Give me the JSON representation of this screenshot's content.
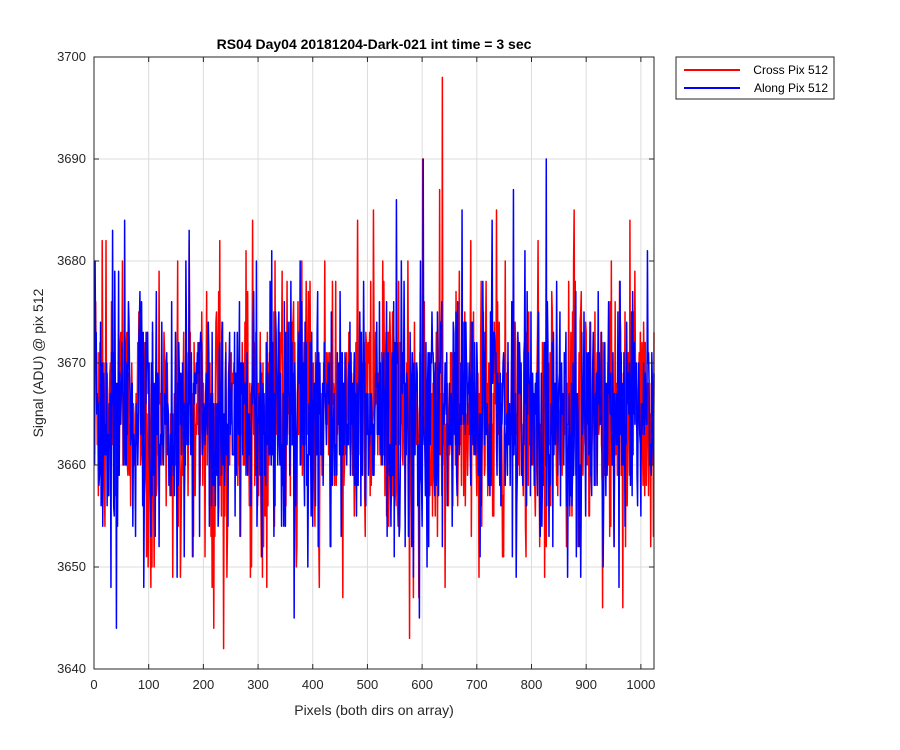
{
  "chart_data": {
    "type": "line",
    "title": "RS04 Day04 20181204-Dark-021 int time = 3 sec",
    "xlabel": "Pixels (both dirs on array)",
    "ylabel": "Signal (ADU) @ pix 512",
    "xlim": [
      0,
      1024
    ],
    "ylim": [
      3640,
      3700
    ],
    "xticks": [
      0,
      100,
      200,
      300,
      400,
      500,
      600,
      700,
      800,
      900,
      1000
    ],
    "yticks": [
      3640,
      3650,
      3660,
      3670,
      3680,
      3690,
      3700
    ],
    "grid": true,
    "legend_position": "outside-top-right",
    "noise": {
      "mean": 3665,
      "sigma": 6
    },
    "series": [
      {
        "name": "Cross Pix 512",
        "color": "#ff0000",
        "marked_peaks": [
          [
            14,
            3682
          ],
          [
            21,
            3682
          ],
          [
            98,
            3650
          ],
          [
            105,
            3650
          ],
          [
            109,
            3650
          ],
          [
            143,
            3649
          ],
          [
            152,
            3680
          ],
          [
            173,
            3682
          ],
          [
            215,
            3648
          ],
          [
            218,
            3644
          ],
          [
            229,
            3682
          ],
          [
            236,
            3642
          ],
          [
            289,
            3684
          ],
          [
            330,
            3680
          ],
          [
            369,
            3650
          ],
          [
            454,
            3647
          ],
          [
            481,
            3684
          ],
          [
            510,
            3685
          ],
          [
            527,
            3680
          ],
          [
            573,
            3680
          ],
          [
            576,
            3643
          ],
          [
            583,
            3647
          ],
          [
            593,
            3647
          ],
          [
            600,
            3690
          ],
          [
            631,
            3687
          ],
          [
            636,
            3698
          ],
          [
            641,
            3648
          ],
          [
            667,
            3679
          ],
          [
            688,
            3682
          ],
          [
            735,
            3685
          ],
          [
            751,
            3680
          ],
          [
            811,
            3682
          ],
          [
            877,
            3685
          ],
          [
            929,
            3646
          ],
          [
            945,
            3680
          ],
          [
            966,
            3646
          ],
          [
            979,
            3684
          ],
          [
            1022,
            3653
          ]
        ]
      },
      {
        "name": "Along Pix 512",
        "color": "#0000ff",
        "marked_peaks": [
          [
            33,
            3683
          ],
          [
            40,
            3644
          ],
          [
            55,
            3684
          ],
          [
            70,
            3654
          ],
          [
            118,
            3652
          ],
          [
            126,
            3660
          ],
          [
            153,
            3658
          ],
          [
            164,
            3651
          ],
          [
            173,
            3683
          ],
          [
            192,
            3653
          ],
          [
            214,
            3656
          ],
          [
            244,
            3654
          ],
          [
            266,
            3653
          ],
          [
            298,
            3658
          ],
          [
            328,
            3653
          ],
          [
            365,
            3645
          ],
          [
            376,
            3680
          ],
          [
            384,
            3656
          ],
          [
            432,
            3652
          ],
          [
            496,
            3656
          ],
          [
            548,
            3651
          ],
          [
            552,
            3686
          ],
          [
            557,
            3653
          ],
          [
            561,
            3680
          ],
          [
            594,
            3645
          ],
          [
            601,
            3690
          ],
          [
            608,
            3650
          ],
          [
            672,
            3685
          ],
          [
            705,
            3651
          ],
          [
            727,
            3684
          ],
          [
            766,
            3687
          ],
          [
            772,
            3656
          ],
          [
            790,
            3656
          ],
          [
            826,
            3690
          ],
          [
            865,
            3649
          ],
          [
            881,
            3651
          ],
          [
            887,
            3653
          ],
          [
            930,
            3650
          ],
          [
            959,
            3648
          ],
          [
            993,
            3656
          ],
          [
            1016,
            3662
          ]
        ]
      }
    ]
  }
}
